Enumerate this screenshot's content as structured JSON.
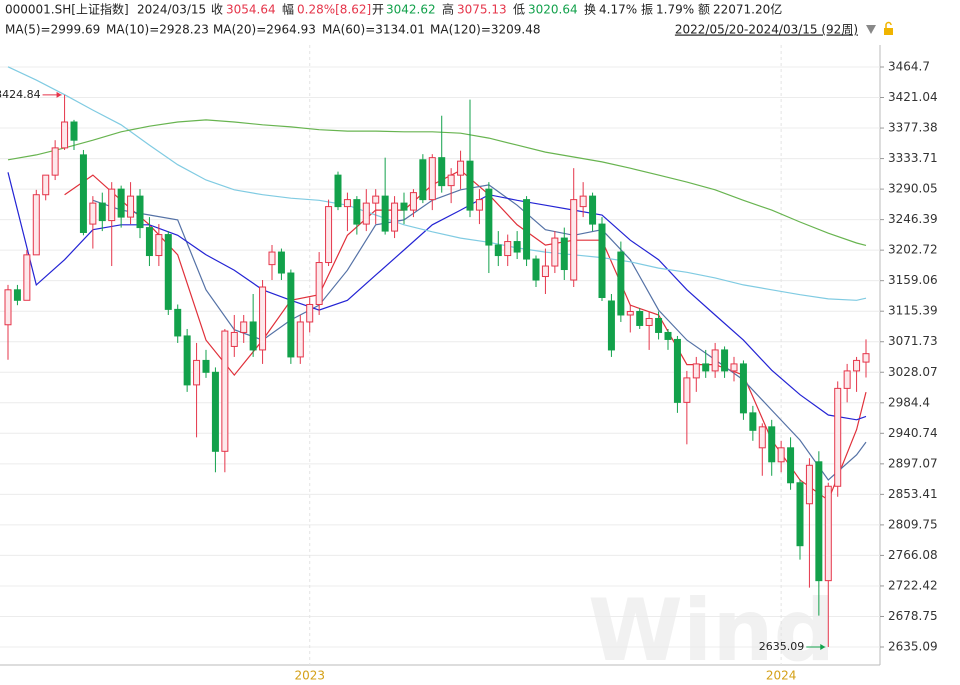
{
  "chart_data": {
    "type": "candlestick",
    "header": {
      "code": "000001.SH[上证指数]",
      "date": "2024/03/15",
      "fields": [
        {
          "label": "收",
          "value": "3054.64"
        },
        {
          "label": "幅",
          "value": "0.28%[8.62]"
        },
        {
          "label": "开",
          "value": "3042.62"
        },
        {
          "label": "高",
          "value": "3075.13"
        },
        {
          "label": "低",
          "value": "3020.64"
        },
        {
          "label": "换",
          "value": "4.17%"
        },
        {
          "label": "振",
          "value": "1.79%"
        },
        {
          "label": "额",
          "value": "22071.20亿"
        }
      ],
      "range": "2022/05/20-2024/03/15 (92周)"
    },
    "watermark": "Wind",
    "up_color": "#e5354a",
    "down_color": "#12a14b",
    "annotations": [
      "3424.84",
      "2635.09"
    ],
    "ylim": [
      2616.5,
      3489.0
    ],
    "yticks": [
      3464.7,
      3421.04,
      3377.38,
      3333.71,
      3290.05,
      3246.39,
      3202.72,
      3159.06,
      3115.39,
      3071.73,
      3028.07,
      2984.4,
      2940.74,
      2897.07,
      2853.41,
      2809.75,
      2766.08,
      2722.42,
      2678.75,
      2635.09
    ],
    "grid": true,
    "categories": [
      null,
      null,
      null,
      null,
      null,
      null,
      null,
      null,
      null,
      null,
      null,
      null,
      null,
      null,
      null,
      null,
      null,
      null,
      null,
      null,
      null,
      null,
      null,
      null,
      null,
      null,
      null,
      null,
      null,
      null,
      null,
      null,
      "2023",
      null,
      null,
      null,
      null,
      null,
      null,
      null,
      null,
      null,
      null,
      null,
      null,
      null,
      null,
      null,
      null,
      null,
      null,
      null,
      null,
      null,
      null,
      null,
      null,
      null,
      null,
      null,
      null,
      null,
      null,
      null,
      null,
      null,
      null,
      null,
      null,
      null,
      null,
      null,
      null,
      null,
      null,
      null,
      null,
      null,
      null,
      null,
      null,
      null,
      "2024",
      null,
      null,
      null,
      null,
      null,
      null,
      null,
      null,
      null
    ],
    "ohlc": [
      [
        3096,
        3153,
        3046,
        3146
      ],
      [
        3146,
        3153,
        3124,
        3131
      ],
      [
        3131,
        3203,
        3131,
        3196
      ],
      [
        3196,
        3289,
        3196,
        3282
      ],
      [
        3282,
        3310,
        3274,
        3310
      ],
      [
        3310,
        3360,
        3303,
        3349
      ],
      [
        3349,
        3424.84,
        3346,
        3386
      ],
      [
        3386,
        3389,
        3346,
        3360
      ],
      [
        3339,
        3346,
        3224,
        3228
      ],
      [
        3240,
        3280,
        3205,
        3270
      ],
      [
        3270,
        3285,
        3230,
        3245
      ],
      [
        3245,
        3300,
        3180,
        3290
      ],
      [
        3290,
        3295,
        3235,
        3250
      ],
      [
        3250,
        3300,
        3240,
        3280
      ],
      [
        3280,
        3290,
        3220,
        3235
      ],
      [
        3235,
        3250,
        3180,
        3195
      ],
      [
        3195,
        3240,
        3180,
        3225
      ],
      [
        3225,
        3230,
        3110,
        3118
      ],
      [
        3118,
        3125,
        3070,
        3080
      ],
      [
        3080,
        3090,
        3000,
        3010
      ],
      [
        3010,
        3070,
        2935,
        3045
      ],
      [
        3045,
        3060,
        3020,
        3028
      ],
      [
        3028,
        3035,
        2885,
        2915
      ],
      [
        2915,
        3090,
        2885,
        3087
      ],
      [
        3065,
        3110,
        3050,
        3085
      ],
      [
        3085,
        3110,
        3070,
        3100
      ],
      [
        3100,
        3140,
        3050,
        3060
      ],
      [
        3060,
        3160,
        3040,
        3150
      ],
      [
        3182,
        3210,
        3160,
        3200
      ],
      [
        3200,
        3205,
        3160,
        3170
      ],
      [
        3170,
        3175,
        3040,
        3050
      ],
      [
        3050,
        3110,
        3040,
        3100
      ],
      [
        3100,
        3135,
        3085,
        3125
      ],
      [
        3125,
        3200,
        3110,
        3185
      ],
      [
        3185,
        3275,
        3180,
        3265
      ],
      [
        3310,
        3315,
        3260,
        3265
      ],
      [
        3265,
        3285,
        3230,
        3275
      ],
      [
        3275,
        3280,
        3225,
        3240
      ],
      [
        3240,
        3290,
        3230,
        3270
      ],
      [
        3270,
        3290,
        3240,
        3280
      ],
      [
        3280,
        3335,
        3225,
        3230
      ],
      [
        3230,
        3280,
        3220,
        3270
      ],
      [
        3270,
        3285,
        3240,
        3260
      ],
      [
        3260,
        3290,
        3250,
        3285
      ],
      [
        3332,
        3340,
        3270,
        3275
      ],
      [
        3275,
        3340,
        3260,
        3335
      ],
      [
        3335,
        3395,
        3285,
        3295
      ],
      [
        3295,
        3320,
        3270,
        3310
      ],
      [
        3310,
        3345,
        3290,
        3330
      ],
      [
        3330,
        3418,
        3250,
        3260
      ],
      [
        3260,
        3290,
        3240,
        3275
      ],
      [
        3290,
        3300,
        3170,
        3210
      ],
      [
        3210,
        3230,
        3180,
        3195
      ],
      [
        3195,
        3225,
        3180,
        3215
      ],
      [
        3215,
        3230,
        3190,
        3200
      ],
      [
        3275,
        3280,
        3180,
        3190
      ],
      [
        3190,
        3195,
        3150,
        3160
      ],
      [
        3165,
        3205,
        3140,
        3180
      ],
      [
        3180,
        3230,
        3170,
        3220
      ],
      [
        3220,
        3235,
        3160,
        3175
      ],
      [
        3160,
        3320,
        3150,
        3275
      ],
      [
        3265,
        3300,
        3250,
        3280
      ],
      [
        3280,
        3285,
        3230,
        3240
      ],
      [
        3240,
        3250,
        3130,
        3135
      ],
      [
        3130,
        3140,
        3050,
        3060
      ],
      [
        3200,
        3215,
        3100,
        3110
      ],
      [
        3110,
        3125,
        3085,
        3115
      ],
      [
        3115,
        3120,
        3090,
        3095
      ],
      [
        3095,
        3115,
        3060,
        3105
      ],
      [
        3105,
        3115,
        3075,
        3085
      ],
      [
        3085,
        3090,
        3060,
        3075
      ],
      [
        3075,
        3080,
        2970,
        2985
      ],
      [
        2985,
        3030,
        2925,
        3020
      ],
      [
        3020,
        3050,
        3000,
        3040
      ],
      [
        3040,
        3060,
        3020,
        3030
      ],
      [
        3030,
        3070,
        3020,
        3060
      ],
      [
        3060,
        3065,
        3020,
        3030
      ],
      [
        3030,
        3050,
        3015,
        3040
      ],
      [
        3040,
        3045,
        2960,
        2970
      ],
      [
        2970,
        2980,
        2930,
        2945
      ],
      [
        2920,
        2955,
        2880,
        2950
      ],
      [
        2950,
        2960,
        2880,
        2900
      ],
      [
        2900,
        2930,
        2885,
        2920
      ],
      [
        2920,
        2935,
        2860,
        2870
      ],
      [
        2870,
        2875,
        2760,
        2780
      ],
      [
        2840,
        2905,
        2720,
        2895
      ],
      [
        2900,
        2915,
        2680,
        2730
      ],
      [
        2730,
        2870,
        2635.09,
        2865
      ],
      [
        2865,
        3015,
        2850,
        3005
      ],
      [
        3005,
        3040,
        2985,
        3030
      ],
      [
        3030,
        3050,
        3000,
        3045
      ],
      [
        3042.62,
        3075.13,
        3020.64,
        3054.64
      ]
    ],
    "x": [
      0,
      3,
      6,
      9,
      12,
      15,
      18,
      21,
      24,
      27,
      30,
      33,
      36,
      39,
      42,
      45,
      48,
      51,
      54,
      57,
      60,
      63,
      66,
      69,
      72,
      75,
      78,
      81,
      84,
      87,
      90,
      91
    ],
    "series": [
      {
        "name": "MA(5)=2999.69",
        "color": "#e0303a",
        "values": [
          null,
          null,
          3282,
          3310,
          3274,
          3239,
          3196,
          3074,
          3024,
          3074,
          3131,
          3139,
          3224,
          3260,
          3260,
          3296,
          3317,
          3282,
          3239,
          3210,
          3217,
          3217,
          3124,
          3110,
          3039,
          3039,
          3024,
          2931,
          2874,
          2845,
          2946,
          2999.69
        ]
      },
      {
        "name": "MA(10)=2928.23",
        "color": "#5572a6",
        "values": [
          null,
          null,
          null,
          3274,
          3260,
          3253,
          3246,
          3146,
          3089,
          3074,
          3103,
          3124,
          3174,
          3239,
          3246,
          3274,
          3289,
          3296,
          3267,
          3232,
          3224,
          3232,
          3189,
          3117,
          3074,
          3046,
          3017,
          2974,
          2931,
          2874,
          2910,
          2928.23
        ]
      },
      {
        "name": "MA(20)=2964.93",
        "color": "#2424d4",
        "values": [
          3314,
          3153,
          3189,
          3232,
          3239,
          3239,
          3224,
          3196,
          3174,
          3146,
          3131,
          3117,
          3131,
          3167,
          3203,
          3239,
          3260,
          3282,
          3274,
          3267,
          3260,
          3253,
          3217,
          3189,
          3146,
          3110,
          3074,
          3031,
          2996,
          2967,
          2960,
          2964.93
        ]
      },
      {
        "name": "MA(60)=3134.01",
        "color": "#80cbe2",
        "values": [
          3465,
          3446,
          3425,
          3403,
          3382,
          3353,
          3325,
          3303,
          3289,
          3282,
          3277,
          3274,
          3267,
          3253,
          3239,
          3229,
          3220,
          3214,
          3206,
          3200,
          3196,
          3192,
          3186,
          3177,
          3171,
          3163,
          3153,
          3146,
          3139,
          3133,
          3131,
          3134.01
        ]
      },
      {
        "name": "MA(120)=3209.48",
        "color": "#68b450",
        "values": [
          3332,
          3339,
          3349,
          3360,
          3372,
          3380,
          3386,
          3389,
          3386,
          3382,
          3379,
          3375,
          3373,
          3373,
          3372,
          3372,
          3370,
          3363,
          3353,
          3343,
          3336,
          3329,
          3320,
          3310,
          3300,
          3289,
          3274,
          3260,
          3243,
          3227,
          3213,
          3209.48
        ]
      }
    ]
  }
}
